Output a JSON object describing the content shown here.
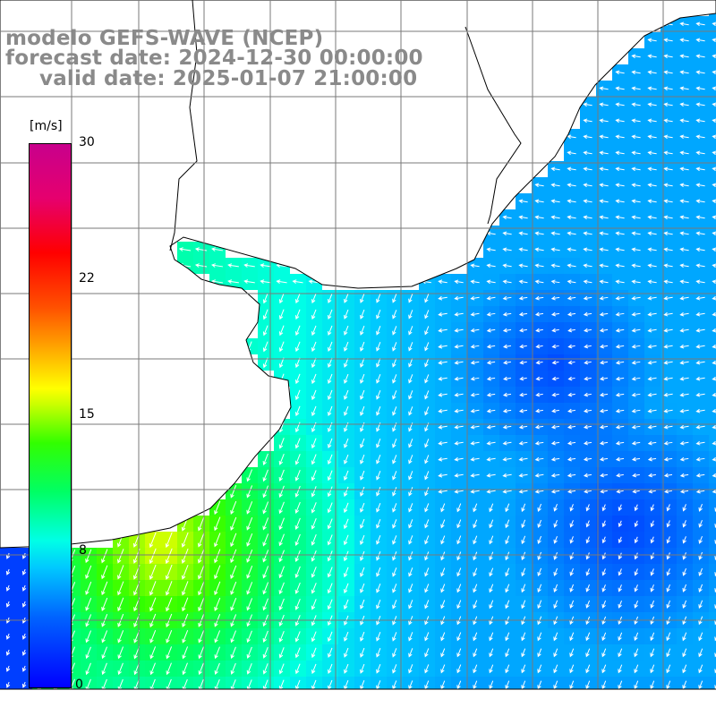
{
  "header": {
    "title_line1": "modelo GEFS-WAVE (NCEP)",
    "title_line2": "forecast date: 2024-12-30 00:00:00",
    "title_line3": "valid date: 2025-01-07 21:00:00"
  },
  "colorbar": {
    "unit": "[m/s]",
    "ticks": [
      "30",
      "22",
      "15",
      "8",
      "0"
    ],
    "min": 0,
    "max": 30,
    "colors": [
      "#0000ff",
      "#00c8ff",
      "#00ffe6",
      "#32ff00",
      "#ffff00",
      "#ff5000",
      "#ff0000",
      "#c8008c"
    ]
  },
  "map": {
    "field": "wind speed and direction over ocean, South Atlantic off southern Brazil / Uruguay / Argentina",
    "land_color": "#ffffff",
    "grid_color": "#808080",
    "strong_wind_area": "yellow-green near Rio de la Plata mouth / Buenos Aires coast",
    "weak_wind_area": "blue offshore east"
  }
}
